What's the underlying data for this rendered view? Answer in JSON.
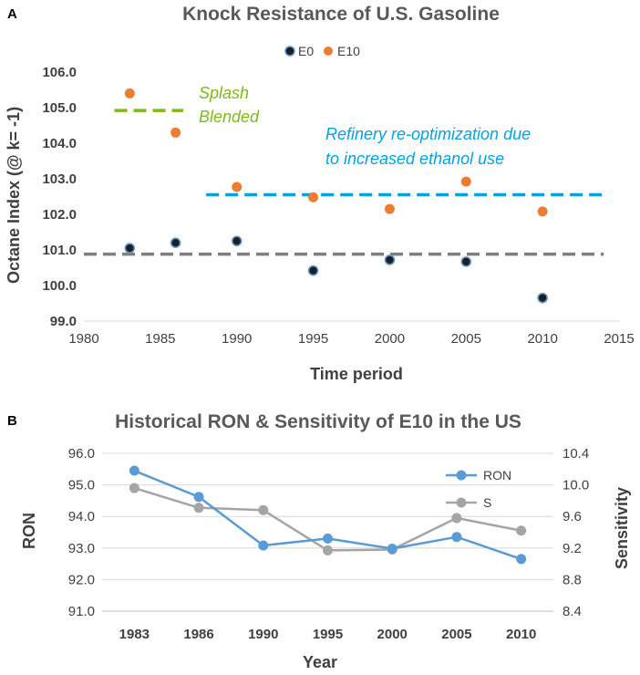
{
  "chart_data": [
    {
      "panel": "A",
      "type": "scatter",
      "title": "Knock Resistance of U.S. Gasoline",
      "xlabel": "Time period",
      "ylabel": "Octane Index (@ k= -1)",
      "xlim": [
        1980,
        2015
      ],
      "ylim": [
        99.0,
        106.0
      ],
      "xticks": [
        1980,
        1985,
        1990,
        1995,
        2000,
        2005,
        2010,
        2015
      ],
      "yticks": [
        "99.0",
        "100.0",
        "101.0",
        "102.0",
        "103.0",
        "104.0",
        "105.0",
        "106.0"
      ],
      "series": [
        {
          "name": "E0",
          "color": "#1f1f1f",
          "edge": "#5b9bd5",
          "x": [
            1983,
            1986,
            1990,
            1995,
            2000,
            2005,
            2010
          ],
          "y": [
            101.05,
            101.2,
            101.25,
            100.42,
            100.72,
            100.67,
            99.65
          ]
        },
        {
          "name": "E10",
          "color": "#ed7d31",
          "x": [
            1983,
            1986,
            1990,
            1995,
            2000,
            2005,
            2010
          ],
          "y": [
            105.4,
            104.3,
            102.77,
            102.48,
            102.15,
            102.92,
            102.08
          ]
        }
      ],
      "reference_lines": [
        {
          "name": "splash-blended",
          "x": [
            1982,
            1986.5
          ],
          "y": 104.92,
          "color": "#7fb918"
        },
        {
          "name": "refinery-reoptimization",
          "x": [
            1988,
            2014
          ],
          "y": 102.55,
          "color": "#00a2e0"
        },
        {
          "name": "e0-average",
          "x": [
            1980,
            2014
          ],
          "y": 100.88,
          "color": "#7f7f7f"
        }
      ],
      "annotations": [
        {
          "lines": [
            "Splash",
            "Blended"
          ],
          "color": "#7fb918"
        },
        {
          "lines": [
            "Refinery re-optimization due",
            "to increased ethanol use"
          ],
          "color": "#00a2e0"
        }
      ]
    },
    {
      "panel": "B",
      "type": "line",
      "title": "Historical RON & Sensitivity of E10 in the US",
      "xlabel": "Year",
      "ylabel": "RON",
      "y2label": "Sensitivity",
      "categories": [
        "1983",
        "1986",
        "1990",
        "1995",
        "2000",
        "2005",
        "2010"
      ],
      "ylim": [
        91.0,
        96.0
      ],
      "yticks": [
        "91.0",
        "92.0",
        "93.0",
        "94.0",
        "95.0",
        "96.0"
      ],
      "y2lim": [
        8.4,
        10.4
      ],
      "y2ticks": [
        "8.4",
        "8.8",
        "9.2",
        "9.6",
        "10.0",
        "10.4"
      ],
      "series": [
        {
          "name": "RON",
          "axis": "left",
          "color": "#5b9bd5",
          "values": [
            95.45,
            94.62,
            93.08,
            93.3,
            92.98,
            93.35,
            92.65
          ]
        },
        {
          "name": "S",
          "axis": "right",
          "color": "#a5a5a5",
          "values": [
            9.96,
            9.71,
            9.68,
            9.17,
            9.18,
            9.58,
            9.42
          ]
        }
      ]
    }
  ]
}
